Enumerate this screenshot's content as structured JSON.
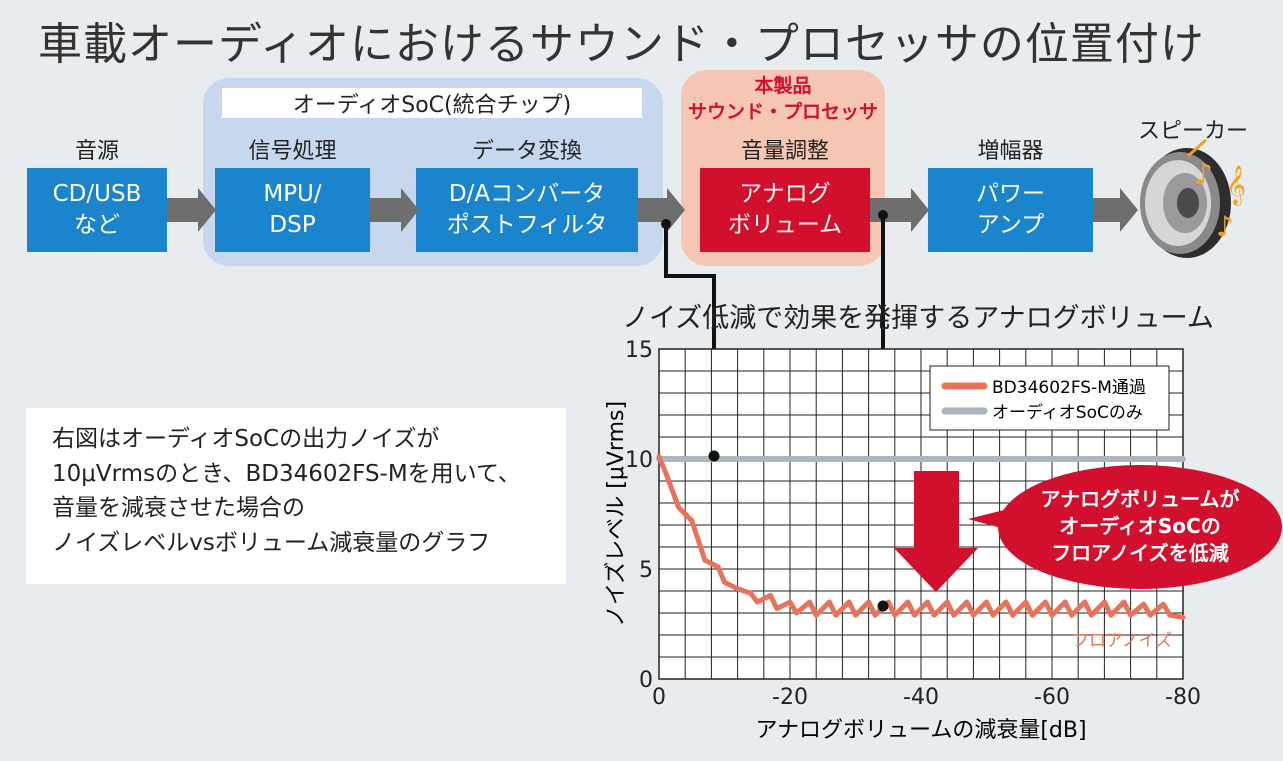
{
  "title": "車載オーディオにおけるサウンド・プロセッサの位置付け",
  "soc_label": "オーディオSoC(統合チップ)",
  "product_label": [
    "本製品",
    "サウンド・プロセッサ"
  ],
  "stages": [
    {
      "label": "音源",
      "box": [
        "CD/USB",
        "など"
      ]
    },
    {
      "label": "信号処理",
      "box": [
        "MPU/",
        "DSP"
      ]
    },
    {
      "label": "データ変換",
      "box": [
        "D/Aコンバータ",
        "ポストフィルタ"
      ]
    },
    {
      "label": "音量調整",
      "box": [
        "アナログ",
        "ボリューム"
      ]
    },
    {
      "label": "増幅器",
      "box": [
        "パワー",
        "アンプ"
      ]
    }
  ],
  "speaker_label": "スピーカー",
  "chart_heading": "ノイズ低減で効果を発揮するアナログボリューム",
  "note_lines": [
    "右図はオーディオSoCの出力ノイズが",
    "10μVrmsのとき、BD34602FS-Mを用いて、",
    "音量を減衰させた場合の",
    "ノイズレベルvsボリューム減衰量のグラフ"
  ],
  "callout": [
    "アナログボリュームが",
    "オーディオSoCの",
    "フロアノイズを低減"
  ],
  "floor_noise_label": "フロアノイズ",
  "colors": {
    "blue_box": "#1a85cc",
    "red_box": "#d20f2c",
    "soc_bg": "#c7d8ee",
    "product_bg": "#f6c6b4",
    "series_bd": "#e8735a",
    "series_soc": "#a9b7c0",
    "arrow": "#6e6e6e"
  },
  "chart_data": {
    "type": "line",
    "xlabel": "アナログボリュームの減衰量[dB]",
    "ylabel": "ノイズレベル [μVrms]",
    "xlim": [
      0,
      -80
    ],
    "ylim": [
      0,
      15
    ],
    "xticks": [
      "0",
      "-20",
      "-40",
      "-60",
      "-80"
    ],
    "yticks": [
      "0",
      "5",
      "10",
      "15"
    ],
    "grid": true,
    "legend_position": "top-right",
    "series": [
      {
        "name": "BD34602FS-M通過",
        "x": [
          0,
          -1,
          -3,
          -5,
          -6,
          -7,
          -9,
          -10,
          -12,
          -14,
          -15,
          -17,
          -18,
          -20,
          -21,
          -23,
          -24,
          -26,
          -27,
          -29,
          -30,
          -32,
          -33,
          -35,
          -36,
          -38,
          -39,
          -41,
          -42,
          -44,
          -45,
          -47,
          -48,
          -50,
          -51,
          -53,
          -54,
          -56,
          -57,
          -59,
          -60,
          -62,
          -63,
          -65,
          -66,
          -68,
          -69,
          -71,
          -72,
          -74,
          -75,
          -77,
          -78,
          -80
        ],
        "values": [
          10.1,
          9.4,
          7.8,
          7.2,
          6.3,
          5.4,
          5.1,
          4.4,
          4.1,
          3.9,
          3.5,
          3.8,
          3.2,
          3.5,
          3.0,
          3.5,
          2.9,
          3.5,
          2.9,
          3.5,
          2.9,
          3.5,
          2.9,
          3.5,
          2.9,
          3.5,
          2.9,
          3.5,
          2.9,
          3.5,
          2.9,
          3.5,
          2.9,
          3.5,
          2.9,
          3.5,
          2.9,
          3.5,
          2.9,
          3.5,
          2.9,
          3.5,
          2.9,
          3.5,
          2.9,
          3.5,
          2.9,
          3.5,
          2.9,
          3.4,
          2.9,
          3.4,
          2.9,
          2.8
        ]
      },
      {
        "name": "オーディオSoCのみ",
        "x": [
          0,
          -80
        ],
        "values": [
          10,
          10
        ]
      }
    ]
  }
}
